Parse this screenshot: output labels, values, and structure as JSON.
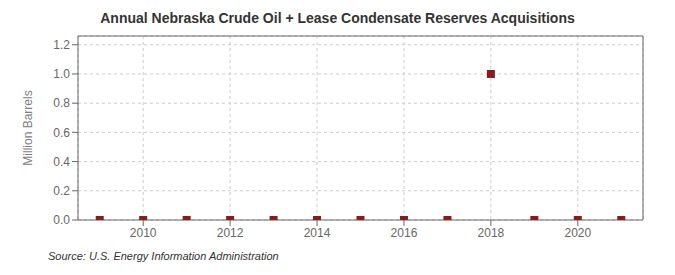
{
  "chart_data": {
    "type": "scatter",
    "title": "Annual Nebraska Crude Oil + Lease Condensate Reserves Acquisitions",
    "y_label": "Million Barrels",
    "annotation": "Source: U.S. Energy Information Administration",
    "x": [
      2009,
      2010,
      2011,
      2012,
      2013,
      2014,
      2015,
      2016,
      2017,
      2018,
      2019,
      2020,
      2021
    ],
    "values": [
      0.0,
      0.0,
      0.0,
      0.0,
      0.0,
      0.0,
      0.0,
      0.0,
      0.0,
      1.0,
      0.0,
      0.0,
      0.0
    ],
    "color": "#8b1a1a",
    "marker": "square",
    "xlim": [
      2008.5,
      2021.5
    ],
    "ylim": [
      0.0,
      1.26
    ],
    "xticks": [
      2010,
      2012,
      2014,
      2016,
      2018,
      2020
    ],
    "yticks": [
      {
        "value": 0.0,
        "label": "0.0"
      },
      0.2,
      0.4,
      0.6,
      0.8,
      {
        "value": 1.0,
        "label": "1.0"
      },
      1.2
    ],
    "grid": true
  }
}
